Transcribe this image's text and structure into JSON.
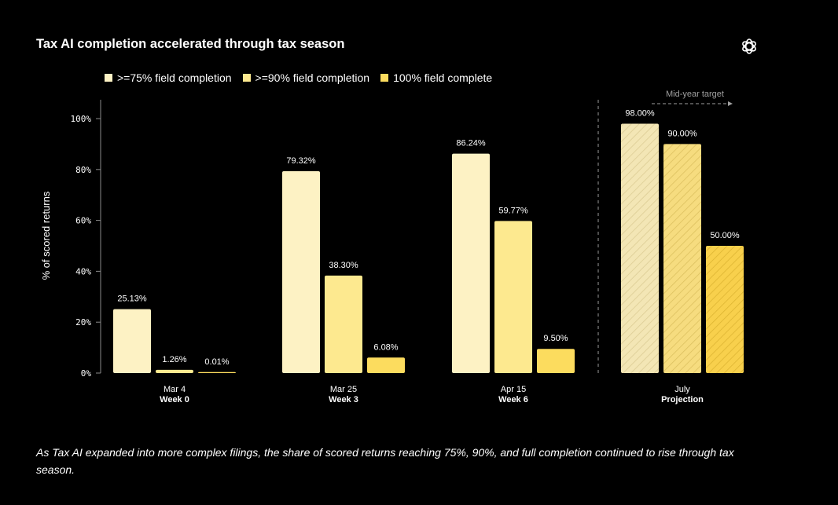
{
  "title": "Tax AI completion accelerated through tax season",
  "icons": {
    "logo": "openai-logo-icon"
  },
  "caption": "As Tax AI expanded into more complex filings, the share of scored returns reaching 75%, 90%, and full completion continued to rise through tax season.",
  "colors": {
    "background": "#000000",
    "series": [
      "#fdf2c4",
      "#fde98f",
      "#fcdc5e"
    ],
    "projection_fill": [
      "#f3e6b5",
      "#f6dc7f",
      "#f8d04c"
    ],
    "axis": "#8a8a8a",
    "divider": "#9a9a9a",
    "annotation": "#a0a0a0"
  },
  "chart_data": {
    "type": "bar",
    "title": "Tax AI completion accelerated through tax season",
    "ylabel": "% of scored returns",
    "xlabel": "",
    "ylim": [
      0,
      100
    ],
    "yticks": [
      "0%",
      "20%",
      "40%",
      "60%",
      "80%",
      "100%"
    ],
    "ytick_values": [
      0,
      20,
      40,
      60,
      80,
      100
    ],
    "grid": false,
    "legend": "top-left",
    "categories": [
      {
        "date": "Mar 4",
        "week": "Week 0"
      },
      {
        "date": "Mar 25",
        "week": "Week 3"
      },
      {
        "date": "Apr 15",
        "week": "Week 6"
      },
      {
        "date": "July",
        "week": "Projection"
      }
    ],
    "series": [
      {
        "name": ">=75% field completion",
        "values": [
          25.13,
          79.32,
          86.24,
          98.0
        ],
        "labels": [
          "25.13%",
          "79.32%",
          "86.24%",
          "98.00%"
        ]
      },
      {
        "name": ">=90% field completion",
        "values": [
          1.26,
          38.3,
          59.77,
          90.0
        ],
        "labels": [
          "1.26%",
          "38.30%",
          "59.77%",
          "90.00%"
        ]
      },
      {
        "name": "100% field complete",
        "values": [
          0.01,
          6.08,
          9.5,
          50.0
        ],
        "labels": [
          "0.01%",
          "6.08%",
          "9.50%",
          "50.00%"
        ]
      }
    ],
    "projection_category_index": 3,
    "annotation": "Mid-year target"
  }
}
